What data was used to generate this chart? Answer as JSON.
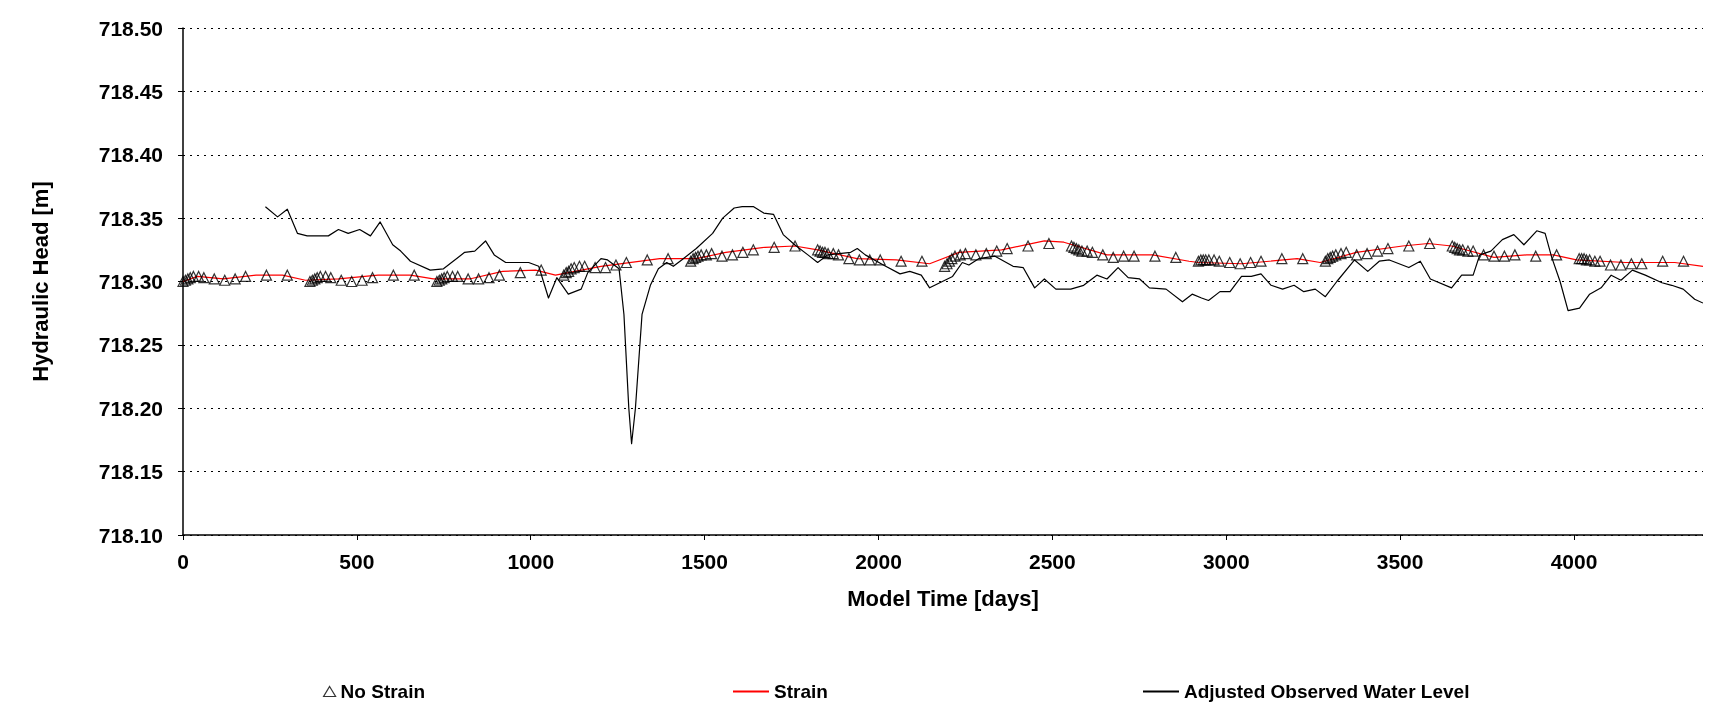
{
  "chart_data": {
    "type": "line",
    "xlabel": "Model Time [days]",
    "ylabel": "Hydraulic Head [m]",
    "xlim": [
      0,
      4371
    ],
    "xticks": [
      0,
      500,
      1000,
      1500,
      2000,
      2500,
      3000,
      3500,
      4000
    ],
    "ylim": [
      718.1,
      718.5
    ],
    "yticks": [
      {
        "value": 718.1,
        "label": "718.10"
      },
      718.15,
      {
        "value": 718.2,
        "label": "718.20"
      },
      718.25,
      {
        "value": 718.3,
        "label": "718.30"
      },
      718.35,
      {
        "value": 718.4,
        "label": "718.40"
      },
      718.45,
      {
        "value": 718.5,
        "label": "718.50"
      }
    ],
    "grid": "y",
    "legend": "bottom",
    "series": [
      {
        "name": "No Strain",
        "type": "scatter",
        "marker": "triangle",
        "color": "#000000",
        "x": [
          0,
          7,
          14,
          21,
          30,
          45,
          60,
          90,
          120,
          150,
          180,
          240,
          300,
          365,
          372,
          379,
          386,
          395,
          410,
          425,
          455,
          485,
          515,
          545,
          605,
          665,
          730,
          737,
          744,
          751,
          760,
          775,
          790,
          820,
          850,
          880,
          910,
          970,
          1030,
          1095,
          1102,
          1109,
          1116,
          1125,
          1140,
          1155,
          1185,
          1215,
          1245,
          1275,
          1335,
          1395,
          1460,
          1467,
          1474,
          1481,
          1490,
          1505,
          1520,
          1550,
          1580,
          1610,
          1640,
          1700,
          1760,
          1825,
          1832,
          1839,
          1846,
          1855,
          1870,
          1885,
          1915,
          1945,
          1975,
          2005,
          2065,
          2125,
          2190,
          2197,
          2204,
          2211,
          2220,
          2235,
          2250,
          2280,
          2310,
          2340,
          2370,
          2430,
          2490,
          2555,
          2562,
          2569,
          2576,
          2585,
          2600,
          2615,
          2645,
          2675,
          2705,
          2735,
          2795,
          2855,
          2920,
          2927,
          2934,
          2941,
          2950,
          2965,
          2980,
          3010,
          3040,
          3070,
          3100,
          3160,
          3220,
          3285,
          3292,
          3299,
          3306,
          3315,
          3330,
          3345,
          3375,
          3405,
          3435,
          3465,
          3525,
          3585,
          3650,
          3657,
          3664,
          3671,
          3680,
          3695,
          3710,
          3740,
          3770,
          3800,
          3830,
          3890,
          3950,
          4015,
          4022,
          4029,
          4036,
          4045,
          4060,
          4075,
          4105,
          4135,
          4165,
          4195,
          4255,
          4315
        ],
        "values": [
          718.3,
          718.301,
          718.302,
          718.303,
          718.304,
          718.304,
          718.303,
          718.302,
          718.301,
          718.302,
          718.304,
          718.305,
          718.305,
          718.3,
          718.301,
          718.302,
          718.303,
          718.304,
          718.304,
          718.303,
          718.301,
          718.3,
          718.301,
          718.303,
          718.305,
          718.305,
          718.3,
          718.301,
          718.302,
          718.303,
          718.304,
          718.304,
          718.304,
          718.302,
          718.302,
          718.303,
          718.305,
          718.307,
          718.309,
          718.305,
          718.307,
          718.308,
          718.31,
          718.311,
          718.312,
          718.312,
          718.311,
          718.311,
          718.313,
          718.315,
          718.317,
          718.318,
          718.316,
          718.318,
          718.319,
          718.32,
          718.321,
          718.321,
          718.322,
          718.32,
          718.321,
          718.323,
          718.325,
          718.327,
          718.328,
          718.325,
          718.324,
          718.323,
          718.323,
          718.322,
          718.322,
          718.321,
          718.318,
          718.317,
          718.317,
          718.317,
          718.316,
          718.316,
          718.312,
          718.314,
          718.316,
          718.318,
          718.32,
          718.321,
          718.322,
          718.321,
          718.322,
          718.324,
          718.326,
          718.328,
          718.33,
          718.328,
          718.327,
          718.326,
          718.325,
          718.324,
          718.324,
          718.323,
          718.321,
          718.319,
          718.32,
          718.32,
          718.32,
          718.319,
          718.316,
          718.317,
          718.317,
          718.317,
          718.317,
          718.317,
          718.316,
          718.315,
          718.314,
          718.315,
          718.316,
          718.318,
          718.318,
          718.316,
          718.318,
          718.319,
          718.32,
          718.321,
          718.322,
          718.323,
          718.321,
          718.322,
          718.324,
          718.326,
          718.328,
          718.33,
          718.328,
          718.327,
          718.326,
          718.325,
          718.325,
          718.324,
          718.324,
          718.321,
          718.32,
          718.32,
          718.321,
          718.32,
          718.321,
          718.318,
          718.318,
          718.318,
          718.317,
          718.317,
          718.316,
          718.316,
          718.313,
          718.313,
          718.314,
          718.314,
          718.316,
          718.316
        ]
      },
      {
        "name": "Strain",
        "marker": "none",
        "color": "#ff0000",
        "x": [
          0,
          41,
          116,
          210,
          286,
          352,
          447,
          561,
          654,
          720,
          824,
          919,
          1014,
          1071,
          1202,
          1371,
          1434,
          1476,
          1561,
          1674,
          1759,
          1825,
          1938,
          2051,
          2147,
          2232,
          2354,
          2477,
          2533,
          2657,
          2788,
          2893,
          2921,
          3044,
          3204,
          3270,
          3374,
          3507,
          3581,
          3648,
          3770,
          3864,
          3941,
          4007,
          4148,
          4290,
          4371
        ],
        "values": [
          718.3,
          718.304,
          718.302,
          718.305,
          718.305,
          718.301,
          718.302,
          718.305,
          718.305,
          718.302,
          718.302,
          718.308,
          718.309,
          718.305,
          718.312,
          718.318,
          718.318,
          718.318,
          718.323,
          718.327,
          718.328,
          718.325,
          718.318,
          718.317,
          718.314,
          718.323,
          718.325,
          718.332,
          718.331,
          718.321,
          718.321,
          718.316,
          718.315,
          718.314,
          718.318,
          718.315,
          718.323,
          718.328,
          718.33,
          718.328,
          718.319,
          718.321,
          718.321,
          718.317,
          718.315,
          718.315,
          718.312
        ]
      },
      {
        "name": "Adjusted Observed Water Level",
        "marker": "none",
        "color": "#000000",
        "x": [
          237,
          272,
          300,
          329,
          357,
          418,
          447,
          475,
          508,
          539,
          567,
          603,
          626,
          654,
          711,
          749,
          810,
          839,
          870,
          895,
          928,
          994,
          1023,
          1051,
          1075,
          1108,
          1145,
          1164,
          1202,
          1221,
          1254,
          1268,
          1282,
          1290,
          1301,
          1320,
          1344,
          1367,
          1391,
          1410,
          1434,
          1476,
          1523,
          1552,
          1585,
          1608,
          1641,
          1670,
          1698,
          1726,
          1759,
          1797,
          1825,
          1854,
          1920,
          1939,
          1962,
          2014,
          2062,
          2090,
          2123,
          2147,
          2213,
          2241,
          2260,
          2288,
          2335,
          2387,
          2416,
          2449,
          2477,
          2510,
          2553,
          2590,
          2628,
          2657,
          2689,
          2718,
          2751,
          2779,
          2827,
          2874,
          2902,
          2929,
          2949,
          2982,
          3011,
          3044,
          3072,
          3100,
          3129,
          3162,
          3195,
          3223,
          3256,
          3285,
          3318,
          3369,
          3407,
          3440,
          3469,
          3525,
          3558,
          3587,
          3648,
          3677,
          3710,
          3729,
          3761,
          3794,
          3827,
          3856,
          3893,
          3917,
          3936,
          3960,
          3983,
          4016,
          4045,
          4078,
          4107,
          4135,
          4168,
          4205,
          4253,
          4281,
          4314,
          4347,
          4371
        ],
        "values": [
          718.359,
          718.351,
          718.357,
          718.338,
          718.336,
          718.336,
          718.341,
          718.338,
          718.341,
          718.336,
          718.347,
          718.329,
          718.324,
          718.316,
          718.309,
          718.31,
          718.323,
          718.324,
          718.332,
          718.321,
          718.315,
          718.315,
          718.312,
          718.287,
          718.303,
          718.29,
          718.294,
          718.307,
          718.318,
          718.317,
          718.31,
          718.274,
          718.2,
          718.172,
          718.2,
          718.274,
          718.297,
          718.31,
          718.315,
          718.312,
          718.317,
          718.326,
          718.338,
          718.35,
          718.358,
          718.359,
          718.359,
          718.354,
          718.353,
          718.337,
          718.329,
          718.321,
          718.315,
          718.321,
          718.323,
          718.326,
          718.321,
          718.313,
          718.306,
          718.308,
          718.305,
          718.295,
          718.304,
          718.315,
          718.313,
          718.318,
          718.32,
          718.312,
          718.311,
          718.295,
          718.302,
          718.294,
          718.294,
          718.297,
          718.305,
          718.302,
          718.311,
          718.303,
          718.302,
          718.295,
          718.294,
          718.284,
          718.29,
          718.287,
          718.285,
          718.292,
          718.292,
          718.304,
          718.304,
          718.306,
          718.297,
          718.294,
          718.297,
          718.292,
          718.294,
          718.288,
          718.3,
          718.317,
          718.308,
          718.316,
          718.317,
          718.311,
          718.316,
          718.302,
          718.295,
          718.305,
          718.305,
          718.321,
          718.324,
          718.333,
          718.337,
          718.329,
          718.34,
          718.338,
          718.319,
          718.3,
          718.277,
          718.279,
          718.29,
          718.295,
          718.305,
          718.301,
          718.309,
          718.305,
          718.299,
          718.297,
          718.294,
          718.286,
          718.283
        ]
      }
    ]
  }
}
